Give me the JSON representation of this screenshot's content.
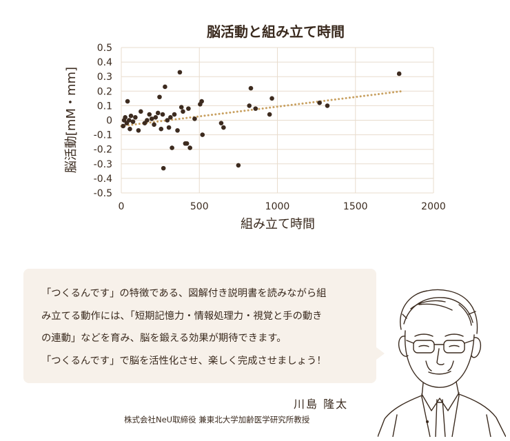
{
  "chart_data": {
    "type": "scatter",
    "title": "脳活動と組み立て時間",
    "xlabel": "組み立て時間",
    "ylabel": "脳活動[mM・mm]",
    "xlim": [
      0,
      2000
    ],
    "ylim": [
      -0.5,
      0.5
    ],
    "x_ticks": [
      "0",
      "500",
      "1000",
      "1500",
      "2000"
    ],
    "y_ticks": [
      "0.5",
      "0.4",
      "0.3",
      "0.2",
      "0.1",
      "0",
      "-0.1",
      "-0.2",
      "-0.3",
      "-0.4",
      "-0.5"
    ],
    "grid": true,
    "trendline": {
      "x": [
        0,
        1800
      ],
      "y": [
        -0.04,
        0.2
      ],
      "style": "dotted"
    },
    "colors": {
      "points": "#3d2b1f",
      "trendline": "#c8a060",
      "grid": "#e8dccd"
    },
    "points": [
      {
        "x": 12,
        "y": -0.04
      },
      {
        "x": 18,
        "y": 0.0
      },
      {
        "x": 25,
        "y": 0.02
      },
      {
        "x": 35,
        "y": -0.02
      },
      {
        "x": 40,
        "y": 0.13
      },
      {
        "x": 50,
        "y": 0.0
      },
      {
        "x": 55,
        "y": -0.06
      },
      {
        "x": 62,
        "y": 0.03
      },
      {
        "x": 75,
        "y": -0.01
      },
      {
        "x": 90,
        "y": 0.02
      },
      {
        "x": 110,
        "y": -0.07
      },
      {
        "x": 125,
        "y": 0.06
      },
      {
        "x": 150,
        "y": -0.02
      },
      {
        "x": 165,
        "y": 0.0
      },
      {
        "x": 180,
        "y": 0.04
      },
      {
        "x": 195,
        "y": 0.01
      },
      {
        "x": 210,
        "y": -0.03
      },
      {
        "x": 220,
        "y": 0.02
      },
      {
        "x": 235,
        "y": 0.05
      },
      {
        "x": 245,
        "y": 0.16
      },
      {
        "x": 255,
        "y": -0.06
      },
      {
        "x": 265,
        "y": 0.04
      },
      {
        "x": 270,
        "y": -0.33
      },
      {
        "x": 280,
        "y": 0.23
      },
      {
        "x": 295,
        "y": 0.0
      },
      {
        "x": 305,
        "y": -0.05
      },
      {
        "x": 315,
        "y": 0.02
      },
      {
        "x": 325,
        "y": -0.19
      },
      {
        "x": 340,
        "y": 0.04
      },
      {
        "x": 360,
        "y": -0.07
      },
      {
        "x": 375,
        "y": 0.33
      },
      {
        "x": 385,
        "y": 0.09
      },
      {
        "x": 395,
        "y": 0.06
      },
      {
        "x": 410,
        "y": -0.16
      },
      {
        "x": 420,
        "y": -0.16
      },
      {
        "x": 430,
        "y": 0.08
      },
      {
        "x": 440,
        "y": -0.19
      },
      {
        "x": 470,
        "y": 0.01
      },
      {
        "x": 505,
        "y": 0.11
      },
      {
        "x": 515,
        "y": 0.13
      },
      {
        "x": 520,
        "y": -0.1
      },
      {
        "x": 640,
        "y": -0.02
      },
      {
        "x": 655,
        "y": -0.05
      },
      {
        "x": 750,
        "y": -0.31
      },
      {
        "x": 820,
        "y": 0.1
      },
      {
        "x": 830,
        "y": 0.22
      },
      {
        "x": 860,
        "y": 0.08
      },
      {
        "x": 950,
        "y": 0.04
      },
      {
        "x": 965,
        "y": 0.15
      },
      {
        "x": 1270,
        "y": 0.12
      },
      {
        "x": 1320,
        "y": 0.1
      },
      {
        "x": 1780,
        "y": 0.32
      }
    ]
  },
  "quote": {
    "lines": [
      "「つくるんです」の特徴である、図解付き説明書を読みながら組",
      "み立てる動作には、「短期記憶力・情報処理力・視覚と手の動き",
      "の連動」などを育み、脳を鍛える効果が期待できます。",
      "「つくるんです」で脳を活性化させ、楽しく完成させましょう！"
    ]
  },
  "person": {
    "name": "川島 隆太",
    "title": "株式会社NeU取締役 兼東北大学加齢医学研究所教授",
    "portrait_icon": "professor-portrait-icon"
  }
}
